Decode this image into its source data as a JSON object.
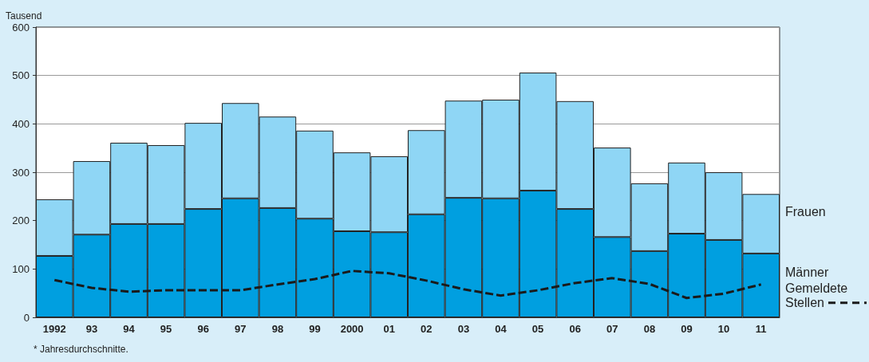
{
  "chart_data": {
    "type": "bar",
    "stacked": true,
    "ylabel": "Tausend",
    "annotations": [
      "* Jahresdurchschnitte."
    ],
    "categories": [
      "1992",
      "93",
      "94",
      "95",
      "96",
      "97",
      "98",
      "99",
      "2000",
      "01",
      "02",
      "03",
      "04",
      "05",
      "06",
      "07",
      "08",
      "09",
      "10",
      "11"
    ],
    "series": [
      {
        "name": "Männer",
        "color": "#009fe0",
        "values": [
          127,
          171,
          193,
          193,
          224,
          246,
          226,
          204,
          178,
          176,
          213,
          247,
          246,
          262,
          224,
          166,
          137,
          173,
          160,
          132
        ]
      },
      {
        "name": "Frauen",
        "color": "#8fd6f5",
        "values": [
          117,
          152,
          168,
          163,
          178,
          197,
          189,
          182,
          163,
          157,
          174,
          201,
          204,
          244,
          223,
          185,
          140,
          147,
          140,
          123
        ]
      },
      {
        "name": "Gemeldete Stellen",
        "type": "line",
        "line_style": "dashed",
        "color": "#1a1a1a",
        "values": [
          77,
          61,
          53,
          56,
          56,
          56,
          68,
          79,
          96,
          91,
          76,
          58,
          45,
          56,
          71,
          81,
          69,
          40,
          49,
          68
        ]
      }
    ],
    "ylim": [
      0,
      600
    ],
    "yticks": [
      0,
      100,
      200,
      300,
      400,
      500,
      600
    ],
    "grid": "y"
  }
}
